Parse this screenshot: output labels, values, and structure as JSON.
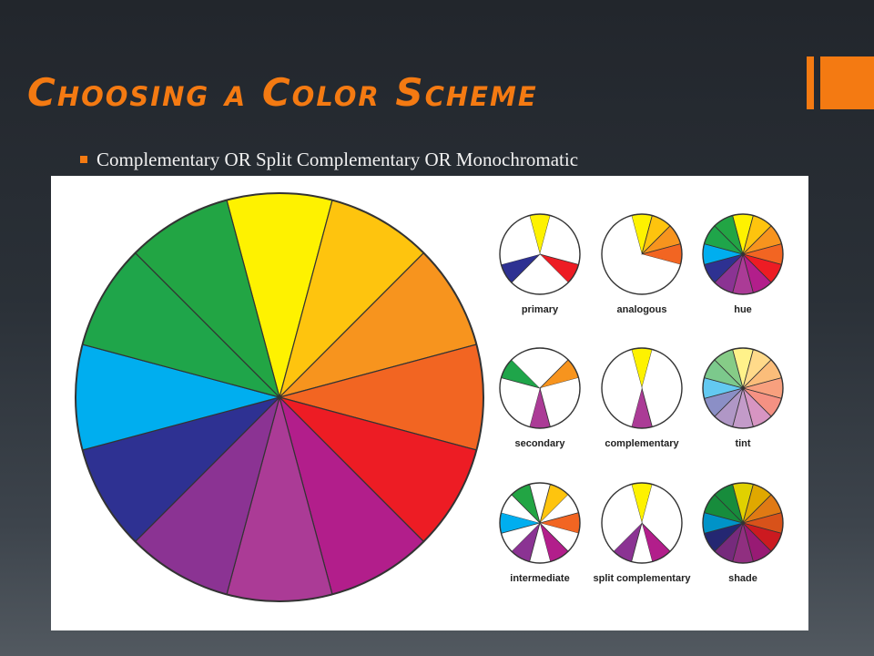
{
  "slide": {
    "title": "Choosing a Color Scheme",
    "bullet": "Complementary OR Split Complementary OR Monochromatic",
    "accent_color": "#f47a12"
  },
  "wheel_colors": [
    "#fef200",
    "#fec40e",
    "#f7941e",
    "#f26522",
    "#ed1c24",
    "#b21e8b",
    "#ab3b96",
    "#8b3393",
    "#2e3192",
    "#00aeef",
    "#1fa54a",
    "#22a544"
  ],
  "palettes": {
    "tint": [
      "#fff28a",
      "#ffda8a",
      "#fbbd7a",
      "#f8a07e",
      "#f59183",
      "#d795c2",
      "#c39bc9",
      "#b097c6",
      "#8b8fc6",
      "#63c9f1",
      "#7cc98c",
      "#86cc87"
    ],
    "shade": [
      "#e0d100",
      "#e0a800",
      "#e07a14",
      "#d8521a",
      "#cc1a20",
      "#981a74",
      "#902f80",
      "#762a7c",
      "#242772",
      "#0093c8",
      "#178c3c",
      "#178c3c"
    ]
  },
  "mini_wheels": [
    {
      "label": "primary",
      "filled": [
        0,
        4,
        8
      ]
    },
    {
      "label": "analogous",
      "filled": [
        0,
        1,
        2,
        3
      ]
    },
    {
      "label": "hue",
      "filled": [
        0,
        1,
        2,
        3,
        4,
        5,
        6,
        7,
        8,
        9,
        10,
        11
      ]
    },
    {
      "label": "secondary",
      "filled": [
        2,
        6,
        10
      ]
    },
    {
      "label": "complementary",
      "filled": [
        0,
        6
      ]
    },
    {
      "label": "tint",
      "filled": [
        0,
        1,
        2,
        3,
        4,
        5,
        6,
        7,
        8,
        9,
        10,
        11
      ],
      "palette": "tint"
    },
    {
      "label": "intermediate",
      "filled": [
        1,
        3,
        5,
        7,
        9,
        11
      ]
    },
    {
      "label": "split complementary",
      "filled": [
        0,
        5,
        7
      ]
    },
    {
      "label": "shade",
      "filled": [
        0,
        1,
        2,
        3,
        4,
        5,
        6,
        7,
        8,
        9,
        10,
        11
      ],
      "palette": "shade"
    }
  ]
}
